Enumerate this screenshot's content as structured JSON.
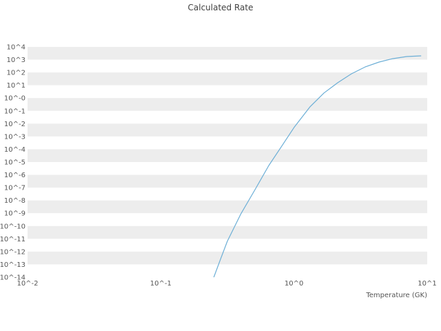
{
  "title": "Calculated Rate",
  "chart_data": {
    "type": "line",
    "title": "Calculated Rate",
    "xlabel": "Temperature (GK)",
    "ylabel": "",
    "x_scale": "log",
    "y_scale": "log",
    "xlim": [
      0.01,
      10
    ],
    "ylim": [
      1e-14,
      10000
    ],
    "grid": "alternating-horizontal-bands",
    "legend": "none",
    "band_color": "#ededed",
    "line_color": "#6baed6",
    "text_color": "#555555",
    "x_tick_labels": [
      "10^-2",
      "10^-1",
      "10^0",
      "10^1"
    ],
    "x_tick_values": [
      0.01,
      0.1,
      1,
      10
    ],
    "y_tick_labels": [
      "10^4",
      "10^3",
      "10^2",
      "10^1",
      "10^-0",
      "10^-1",
      "10^-2",
      "10^-3",
      "10^-4",
      "10^-5",
      "10^-6",
      "10^-7",
      "10^-8",
      "10^-9",
      "10^-10",
      "10^-11",
      "10^-12",
      "10^-13",
      "10^-14"
    ],
    "y_tick_values": [
      10000.0,
      1000.0,
      100.0,
      10.0,
      1,
      0.1,
      0.01,
      0.001,
      0.0001,
      1e-05,
      1e-06,
      1e-07,
      1e-08,
      1e-09,
      1e-10,
      1e-11,
      1e-12,
      1e-13,
      1e-14
    ],
    "series": [
      {
        "name": "calculated-rate",
        "points": [
          [
            0.25,
            1e-14
          ],
          [
            0.281,
            2.6e-13
          ],
          [
            0.316,
            6.4e-12
          ],
          [
            0.4,
            9.2e-10
          ],
          [
            0.51,
            7e-08
          ],
          [
            0.647,
            5.4e-06
          ],
          [
            0.821,
            0.00022
          ],
          [
            1.0,
            0.005
          ],
          [
            1.32,
            0.21
          ],
          [
            1.68,
            2.5
          ],
          [
            2.13,
            16
          ],
          [
            2.7,
            79
          ],
          [
            3.42,
            270
          ],
          [
            4.35,
            650
          ],
          [
            5.5,
            1200
          ],
          [
            7.0,
            1760
          ],
          [
            9.0,
            2000
          ]
        ]
      }
    ]
  }
}
